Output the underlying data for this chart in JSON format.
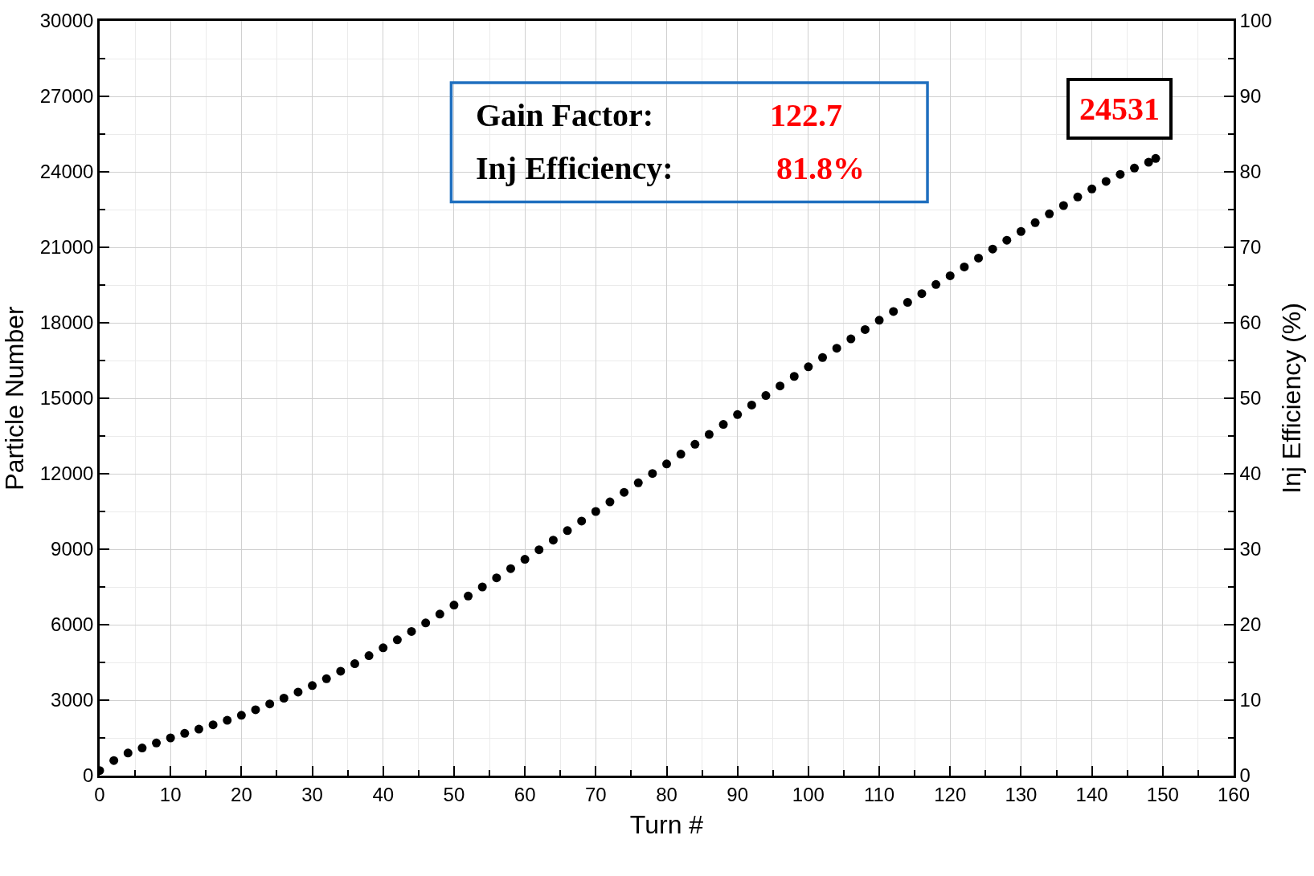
{
  "chart_data": {
    "type": "scatter",
    "xlabel": "Turn #",
    "ylabel": "Particle Number",
    "y2label": "Inj Efficiency (%)",
    "x": [
      0,
      2,
      4,
      6,
      8,
      10,
      12,
      14,
      16,
      18,
      20,
      22,
      24,
      26,
      28,
      30,
      32,
      34,
      36,
      38,
      40,
      42,
      44,
      46,
      48,
      50,
      52,
      54,
      56,
      58,
      60,
      62,
      64,
      66,
      68,
      70,
      72,
      74,
      76,
      78,
      80,
      82,
      84,
      86,
      88,
      90,
      92,
      94,
      96,
      98,
      100,
      102,
      104,
      106,
      108,
      110,
      112,
      114,
      116,
      118,
      120,
      122,
      124,
      126,
      128,
      130,
      132,
      134,
      136,
      138,
      140,
      142,
      144,
      146,
      148,
      149
    ],
    "series": [
      {
        "color": "#000000",
        "values": [
          200,
          600,
          900,
          1100,
          1300,
          1500,
          1680,
          1850,
          2020,
          2200,
          2400,
          2620,
          2850,
          3080,
          3320,
          3580,
          3850,
          4150,
          4450,
          4770,
          5080,
          5400,
          5730,
          6070,
          6420,
          6780,
          7140,
          7500,
          7860,
          8230,
          8600,
          8980,
          9360,
          9740,
          10120,
          10500,
          10880,
          11260,
          11640,
          12010,
          12390,
          12780,
          13170,
          13560,
          13960,
          14350,
          14730,
          15110,
          15490,
          15870,
          16250,
          16620,
          16990,
          17360,
          17730,
          18100,
          18450,
          18810,
          19160,
          19520,
          19870,
          20220,
          20570,
          20930,
          21280,
          21630,
          21980,
          22330,
          22660,
          23000,
          23320,
          23620,
          23900,
          24150,
          24380,
          24531
        ]
      }
    ],
    "marker": "circle",
    "grid": true,
    "xlim": [
      0,
      160
    ],
    "xticks": [
      0,
      10,
      20,
      30,
      40,
      50,
      60,
      70,
      80,
      90,
      100,
      110,
      120,
      130,
      140,
      150,
      160
    ],
    "ylim": [
      0,
      30000
    ],
    "yticks": [
      0,
      3000,
      6000,
      9000,
      12000,
      15000,
      18000,
      21000,
      24000,
      27000,
      30000
    ],
    "y2lim": [
      0,
      100
    ],
    "y2ticks": [
      0,
      10,
      20,
      30,
      40,
      50,
      60,
      70,
      80,
      90,
      100
    ],
    "annotations": [
      "Gain Factor:",
      "122.7",
      "Inj Efficiency:",
      "81.8%",
      {
        "text": "24531",
        "x": 149,
        "y": 24531
      }
    ]
  }
}
